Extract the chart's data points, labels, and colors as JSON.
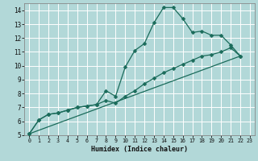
{
  "xlabel": "Humidex (Indice chaleur)",
  "bg_color": "#b2d8d8",
  "grid_color": "#ffffff",
  "line_color": "#1a6b5a",
  "xlim": [
    -0.5,
    23.5
  ],
  "ylim": [
    5,
    14.5
  ],
  "xticks": [
    0,
    1,
    2,
    3,
    4,
    5,
    6,
    7,
    8,
    9,
    10,
    11,
    12,
    13,
    14,
    15,
    16,
    17,
    18,
    19,
    20,
    21,
    22,
    23
  ],
  "yticks": [
    5,
    6,
    7,
    8,
    9,
    10,
    11,
    12,
    13,
    14
  ],
  "line1_x": [
    0,
    1,
    2,
    3,
    4,
    5,
    6,
    7,
    8,
    9,
    10,
    11,
    12,
    13,
    14,
    15,
    16,
    17,
    18,
    19,
    20,
    21,
    22
  ],
  "line1_y": [
    5.1,
    6.1,
    6.5,
    6.6,
    6.8,
    7.0,
    7.1,
    7.2,
    8.2,
    7.8,
    9.9,
    11.1,
    11.6,
    13.1,
    14.2,
    14.2,
    13.4,
    12.4,
    12.5,
    12.2,
    12.2,
    11.5,
    10.7
  ],
  "line2_x": [
    0,
    1,
    2,
    3,
    4,
    5,
    6,
    7,
    8,
    9,
    10,
    11,
    12,
    13,
    14,
    15,
    16,
    17,
    18,
    19,
    20,
    21,
    22
  ],
  "line2_y": [
    5.1,
    6.1,
    6.5,
    6.6,
    6.8,
    7.0,
    7.1,
    7.2,
    7.5,
    7.3,
    7.8,
    8.2,
    8.7,
    9.1,
    9.5,
    9.8,
    10.1,
    10.4,
    10.7,
    10.8,
    11.0,
    11.3,
    10.7
  ],
  "line3_x": [
    0,
    22
  ],
  "line3_y": [
    5.1,
    10.7
  ],
  "marker_size": 2.5,
  "linewidth": 0.9
}
